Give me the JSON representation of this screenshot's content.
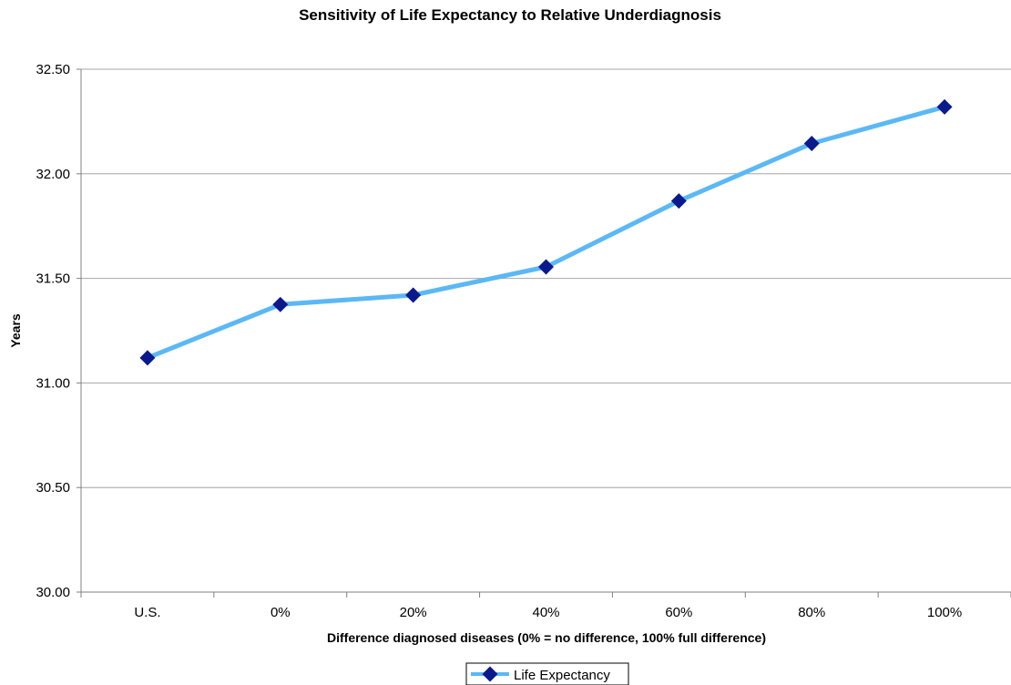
{
  "chart_data": {
    "type": "line",
    "title": "Sensitivity of Life Expectancy to Relative Underdiagnosis",
    "xlabel": "Difference diagnosed diseases (0% = no difference, 100% full difference)",
    "ylabel": "Years",
    "categories": [
      "U.S.",
      "0%",
      "20%",
      "40%",
      "60%",
      "80%",
      "100%"
    ],
    "series": [
      {
        "name": "Life Expectancy",
        "values": [
          31.12,
          31.375,
          31.42,
          31.555,
          31.87,
          32.145,
          32.32
        ]
      }
    ],
    "ylim": [
      30.0,
      32.5
    ],
    "yticks": [
      "30.00",
      "30.50",
      "31.00",
      "31.50",
      "32.00",
      "32.50"
    ],
    "grid": "horizontal",
    "legend_position": "bottom",
    "colors": {
      "line": "#5BB8F5",
      "marker": "#0A1A8C",
      "grid": "#a6a6a6",
      "axis": "#808080"
    }
  }
}
